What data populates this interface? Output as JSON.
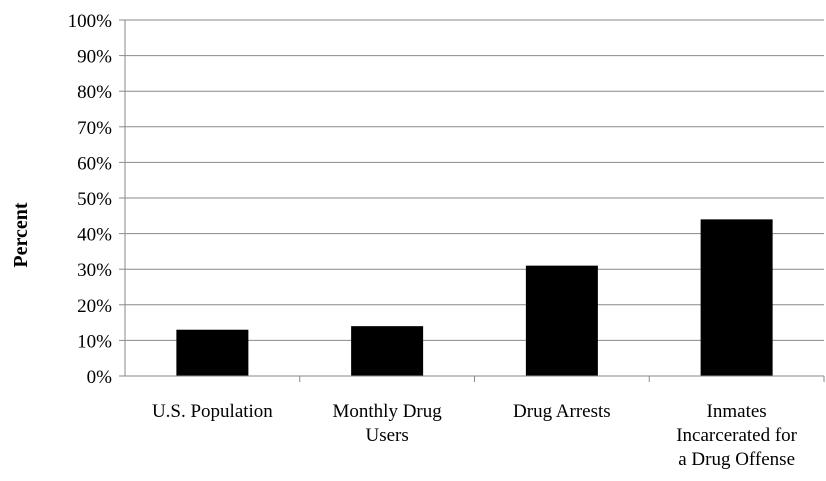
{
  "chart_data": {
    "type": "bar",
    "title": "",
    "xlabel": "",
    "ylabel": "Percent",
    "ylim": [
      0,
      100
    ],
    "y_ticks": [
      "0%",
      "10%",
      "20%",
      "30%",
      "40%",
      "50%",
      "60%",
      "70%",
      "80%",
      "90%",
      "100%"
    ],
    "grid": true,
    "legend": "none",
    "bar_color": "#000000",
    "categories": [
      [
        "U.S. Population"
      ],
      [
        "Monthly Drug",
        "Users"
      ],
      [
        "Drug Arrests"
      ],
      [
        "Inmates",
        "Incarcerated for",
        "a Drug Offense"
      ]
    ],
    "values": [
      13,
      14,
      31,
      44
    ]
  }
}
